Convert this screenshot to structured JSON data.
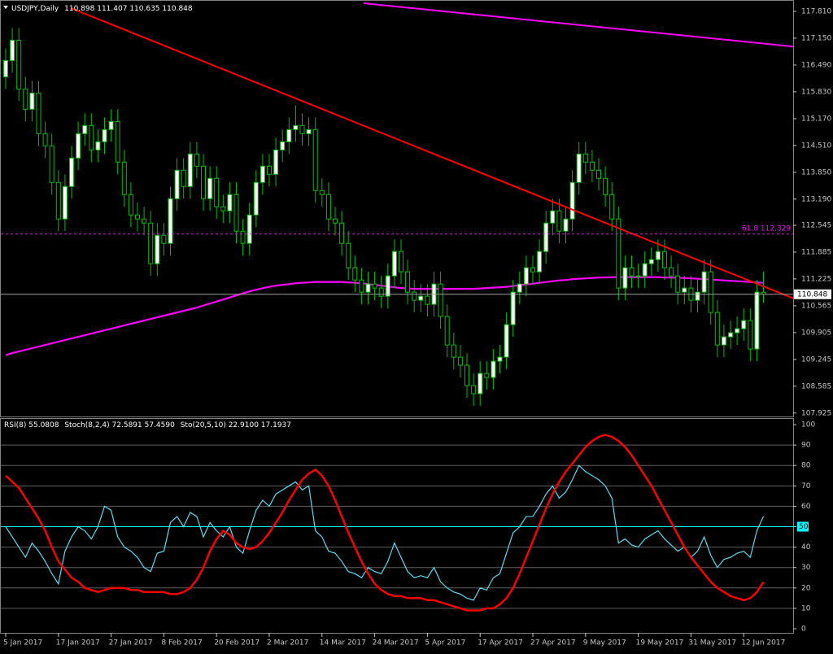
{
  "chart_data": [
    {
      "type": "candlestick",
      "title": "USDJPY,Daily",
      "categories": [
        "5 Jan 2017",
        null,
        null,
        null,
        null,
        null,
        null,
        null,
        "17 Jan 2017",
        null,
        null,
        null,
        null,
        null,
        null,
        null,
        "27 Jan 2017",
        null,
        null,
        null,
        null,
        null,
        null,
        null,
        "8 Feb 2017",
        null,
        null,
        null,
        null,
        null,
        null,
        null,
        "20 Feb 2017",
        null,
        null,
        null,
        null,
        null,
        null,
        null,
        "2 Mar 2017",
        null,
        null,
        null,
        null,
        null,
        null,
        null,
        "14 Mar 2017",
        null,
        null,
        null,
        null,
        null,
        null,
        null,
        "24 Mar 2017",
        null,
        null,
        null,
        null,
        null,
        null,
        null,
        "5 Apr 2017",
        null,
        null,
        null,
        null,
        null,
        null,
        null,
        "17 Apr 2017",
        null,
        null,
        null,
        null,
        null,
        null,
        null,
        "27 Apr 2017",
        null,
        null,
        null,
        null,
        null,
        null,
        null,
        "9 May 2017",
        null,
        null,
        null,
        null,
        null,
        null,
        null,
        "19 May 2017",
        null,
        null,
        null,
        null,
        null,
        null,
        null,
        "31 May 2017",
        null,
        null,
        null,
        null,
        null,
        null,
        null,
        "12 Jun 2017",
        null,
        null,
        null
      ],
      "open": [
        116.2,
        116.6,
        117.1,
        115.9,
        115.4,
        115.8,
        114.8,
        114.5,
        113.6,
        112.7,
        113.5,
        114.2,
        114.8,
        115.0,
        114.4,
        114.6,
        114.9,
        115.1,
        114.1,
        113.3,
        112.8,
        112.7,
        112.6,
        111.6,
        112.3,
        112.1,
        113.2,
        113.9,
        113.5,
        114.3,
        114.0,
        113.2,
        113.7,
        113.0,
        112.9,
        113.3,
        112.4,
        112.1,
        112.8,
        113.6,
        114.0,
        113.8,
        114.4,
        114.6,
        114.9,
        115.0,
        114.8,
        114.9,
        113.4,
        113.3,
        112.7,
        112.6,
        112.1,
        111.5,
        111.2,
        110.9,
        111.1,
        111.0,
        110.8,
        111.3,
        111.9,
        111.4,
        110.9,
        110.7,
        110.8,
        110.6,
        111.1,
        110.3,
        109.6,
        109.3,
        109.1,
        108.6,
        108.4,
        108.9,
        108.8,
        109.2,
        109.3,
        110.1,
        110.9,
        111.1,
        111.5,
        111.4,
        111.9,
        112.6,
        112.9,
        112.4,
        112.7,
        113.6,
        114.3,
        114.1,
        113.9,
        113.7,
        113.3,
        112.7,
        111.0,
        111.5,
        111.3,
        111.3,
        111.6,
        111.7,
        111.9,
        111.5,
        111.3,
        110.9,
        111.0,
        110.7,
        110.9,
        111.4,
        110.4,
        109.6,
        109.8,
        109.9,
        110.0,
        110.2,
        109.5,
        110.898
      ],
      "high": [
        116.9,
        117.4,
        117.4,
        116.2,
        116.1,
        116.1,
        115.1,
        114.8,
        113.9,
        113.8,
        114.5,
        115.1,
        115.3,
        115.3,
        114.9,
        115.2,
        115.4,
        115.4,
        114.4,
        113.6,
        113.1,
        113.0,
        112.9,
        112.6,
        112.6,
        113.5,
        114.2,
        114.2,
        114.6,
        114.6,
        114.3,
        114.0,
        114.0,
        113.3,
        113.6,
        113.6,
        112.7,
        113.1,
        113.9,
        114.3,
        114.3,
        114.7,
        114.9,
        115.2,
        115.5,
        115.3,
        115.2,
        115.2,
        113.7,
        113.6,
        113.0,
        112.9,
        112.4,
        111.8,
        111.5,
        111.4,
        111.4,
        111.3,
        111.6,
        112.2,
        112.2,
        111.7,
        111.2,
        111.1,
        111.1,
        111.4,
        111.4,
        110.6,
        109.9,
        109.6,
        109.4,
        108.9,
        109.2,
        109.2,
        109.5,
        109.6,
        110.4,
        111.2,
        111.4,
        111.8,
        111.8,
        112.2,
        112.9,
        113.2,
        113.2,
        113.0,
        113.9,
        114.6,
        114.6,
        114.4,
        114.2,
        114.0,
        113.6,
        113.0,
        111.8,
        111.8,
        111.6,
        111.9,
        112.0,
        112.2,
        112.2,
        111.8,
        111.6,
        111.3,
        111.3,
        111.2,
        111.7,
        111.7,
        110.7,
        110.1,
        110.2,
        110.3,
        110.5,
        110.5,
        111.2,
        111.407
      ],
      "low": [
        115.9,
        116.3,
        115.6,
        115.1,
        115.1,
        114.5,
        114.2,
        113.3,
        112.4,
        112.4,
        113.2,
        113.9,
        114.5,
        114.1,
        114.1,
        114.3,
        114.6,
        113.8,
        113.0,
        112.5,
        112.4,
        112.3,
        111.3,
        111.3,
        111.8,
        111.8,
        112.9,
        113.2,
        113.2,
        113.7,
        112.9,
        112.9,
        112.7,
        112.6,
        112.6,
        112.1,
        111.8,
        111.8,
        112.5,
        113.3,
        113.5,
        113.5,
        114.1,
        114.3,
        114.6,
        114.5,
        114.5,
        113.1,
        113.0,
        112.4,
        112.3,
        111.8,
        111.2,
        110.9,
        110.6,
        110.6,
        110.7,
        110.5,
        110.5,
        111.0,
        111.1,
        110.6,
        110.4,
        110.4,
        110.3,
        110.3,
        110.0,
        109.3,
        109.0,
        108.8,
        108.3,
        108.1,
        108.1,
        108.5,
        108.5,
        108.9,
        109.0,
        109.8,
        110.6,
        110.8,
        111.1,
        111.1,
        111.6,
        112.3,
        112.1,
        112.1,
        112.4,
        113.3,
        113.8,
        113.6,
        113.4,
        113.0,
        112.4,
        110.7,
        110.7,
        111.0,
        111.0,
        111.0,
        111.3,
        111.4,
        111.2,
        111.0,
        110.6,
        110.6,
        110.4,
        110.4,
        110.6,
        110.1,
        109.3,
        109.3,
        109.5,
        109.6,
        109.7,
        109.2,
        109.2,
        110.635
      ],
      "close": [
        116.6,
        117.1,
        115.9,
        115.4,
        115.8,
        114.8,
        114.5,
        113.6,
        112.7,
        113.5,
        114.2,
        114.8,
        115.0,
        114.4,
        114.6,
        114.9,
        115.1,
        114.1,
        113.3,
        112.8,
        112.7,
        112.6,
        111.6,
        112.3,
        112.1,
        113.2,
        113.9,
        113.5,
        114.3,
        114.0,
        113.2,
        113.7,
        113.0,
        112.9,
        113.3,
        112.4,
        112.1,
        112.8,
        113.6,
        114.0,
        113.8,
        114.4,
        114.6,
        114.9,
        115.0,
        114.8,
        114.9,
        113.4,
        113.3,
        112.7,
        112.6,
        112.1,
        111.5,
        111.2,
        110.9,
        111.1,
        111.0,
        110.8,
        111.3,
        111.9,
        111.4,
        110.9,
        110.7,
        110.8,
        110.6,
        111.1,
        110.3,
        109.6,
        109.3,
        109.1,
        108.6,
        108.4,
        108.9,
        108.8,
        109.2,
        109.3,
        110.1,
        110.9,
        111.1,
        111.5,
        111.4,
        111.9,
        112.6,
        112.9,
        112.4,
        112.7,
        113.6,
        114.3,
        114.1,
        113.9,
        113.7,
        113.3,
        112.7,
        111.0,
        111.5,
        111.3,
        111.3,
        111.6,
        111.7,
        111.9,
        111.5,
        111.3,
        110.9,
        111.0,
        110.7,
        110.9,
        111.4,
        110.4,
        109.6,
        109.8,
        109.9,
        110.0,
        110.2,
        109.5,
        110.9,
        110.848
      ],
      "up_color": "#ffffff",
      "down_color": "#000000",
      "wick_color": "#00c000",
      "series": [
        {
          "color": "#ff00ff",
          "values": [
            109.35,
            109.4,
            109.44,
            109.48,
            109.52,
            109.56,
            109.6,
            109.64,
            109.68,
            109.72,
            109.76,
            109.8,
            109.84,
            109.88,
            109.92,
            109.96,
            110.0,
            110.04,
            110.08,
            110.12,
            110.16,
            110.2,
            110.24,
            110.28,
            110.32,
            110.36,
            110.4,
            110.44,
            110.48,
            110.52,
            110.57,
            110.62,
            110.67,
            110.72,
            110.77,
            110.82,
            110.87,
            110.92,
            110.96,
            111.0,
            111.03,
            111.06,
            111.08,
            111.1,
            111.12,
            111.13,
            111.14,
            111.15,
            111.15,
            111.15,
            111.15,
            111.15,
            111.14,
            111.13,
            111.12,
            111.1,
            111.08,
            111.06,
            111.04,
            111.02,
            111.0,
            110.99,
            110.98,
            110.98,
            110.98,
            110.98,
            110.98,
            110.98,
            110.98,
            110.98,
            110.98,
            110.98,
            110.99,
            111.0,
            111.01,
            111.02,
            111.03,
            111.05,
            111.07,
            111.09,
            111.11,
            111.13,
            111.15,
            111.17,
            111.19,
            111.2,
            111.22,
            111.23,
            111.24,
            111.25,
            111.26,
            111.26,
            111.27,
            111.27,
            111.27,
            111.27,
            111.27,
            111.27,
            111.27,
            111.27,
            111.26,
            111.26,
            111.25,
            111.25,
            111.24,
            111.23,
            111.22,
            111.21,
            111.2,
            111.19,
            111.18,
            111.17,
            111.16,
            111.15,
            111.14,
            111.13
          ]
        }
      ],
      "trendlines": [
        {
          "color": "#ff0000",
          "x": [
            9.9,
            120.4
          ],
          "y": [
            117.89,
            110.69
          ]
        },
        {
          "color": "#ff00ff",
          "x": [
            54.3,
            120.4
          ],
          "y": [
            118.01,
            116.93
          ]
        }
      ],
      "levels": [
        {
          "label": "61.8 112.329",
          "value": 112.329,
          "color": "#ff00ff"
        }
      ],
      "ylim": [
        107.84,
        118.05
      ],
      "yticks": [
        {
          "value": 117.81,
          "label": "117.810"
        },
        {
          "value": 117.15,
          "label": "117.150"
        },
        {
          "value": 116.49,
          "label": "116.490"
        },
        {
          "value": 115.83,
          "label": "115.830"
        },
        {
          "value": 115.17,
          "label": "115.170"
        },
        {
          "value": 114.51,
          "label": "114.510"
        },
        {
          "value": 113.85,
          "label": "113.850"
        },
        {
          "value": 113.19,
          "label": "113.190"
        },
        {
          "value": 112.545,
          "label": "112.545"
        },
        {
          "value": 111.885,
          "label": "111.885"
        },
        {
          "value": 111.225,
          "label": "111.225"
        },
        {
          "value": 110.565,
          "label": "110.565"
        },
        {
          "value": 109.905,
          "label": "109.905"
        },
        {
          "value": 109.245,
          "label": "109.245"
        },
        {
          "value": 108.585,
          "label": "108.585"
        },
        {
          "value": 107.925,
          "label": "107.925"
        }
      ]
    },
    {
      "type": "line",
      "series": [
        {
          "name": "RSI(8)",
          "color": "#5fd8f0",
          "values": [
            50,
            45,
            40,
            35,
            42,
            38,
            33,
            27,
            22,
            38,
            45,
            50,
            48,
            44,
            50,
            60,
            58,
            45,
            40,
            38,
            35,
            30,
            28,
            37,
            38,
            52,
            55,
            50,
            57,
            55,
            45,
            52,
            48,
            45,
            50,
            40,
            37,
            48,
            58,
            63,
            60,
            66,
            68,
            70,
            72,
            68,
            70,
            48,
            45,
            38,
            37,
            33,
            28,
            27,
            25,
            30,
            28,
            27,
            33,
            42,
            35,
            28,
            25,
            26,
            25,
            30,
            23,
            20,
            18,
            17,
            15,
            14,
            20,
            19,
            25,
            27,
            37,
            47,
            50,
            55,
            55,
            60,
            66,
            70,
            64,
            67,
            73,
            80,
            77,
            75,
            73,
            70,
            64,
            42,
            44,
            41,
            40,
            44,
            46,
            48,
            44,
            41,
            38,
            40,
            35,
            38,
            45,
            36,
            30,
            34,
            35,
            37,
            38,
            35,
            48,
            55.0808
          ]
        },
        {
          "name": "Sto(20,5,10)",
          "color": "#ff0000",
          "values": [
            75,
            72,
            69,
            64,
            59,
            54,
            48,
            40,
            33,
            29,
            25,
            23,
            20,
            19,
            18,
            19,
            20,
            20,
            20,
            19,
            19,
            18,
            18,
            18,
            18,
            17,
            17,
            18,
            20,
            24,
            30,
            38,
            44,
            48,
            46,
            42,
            40,
            39,
            40,
            43,
            47,
            52,
            57,
            63,
            68,
            73,
            76,
            78,
            75,
            70,
            63,
            55,
            47,
            40,
            33,
            27,
            22,
            19,
            17,
            16,
            16,
            15,
            15,
            15,
            14,
            14,
            13,
            12,
            11,
            10,
            9,
            9,
            9,
            10,
            10,
            12,
            15,
            20,
            27,
            35,
            43,
            51,
            59,
            66,
            72,
            77,
            81,
            85,
            89,
            92,
            94,
            95,
            94,
            92,
            89,
            85,
            80,
            75,
            70,
            64,
            58,
            52,
            46,
            40,
            35,
            31,
            27,
            23,
            20,
            18,
            16,
            15,
            14,
            15,
            18,
            22.91
          ]
        }
      ],
      "stoch_readout": "Stoch(8,2,4) 72.5891 57.4590",
      "sto_readout": "22.9100 17.1937",
      "levels": [
        {
          "value": 50,
          "color": "#00ffff"
        }
      ],
      "grid": true,
      "ylim": [
        -2,
        102.8
      ],
      "yticks": [
        0,
        10,
        20,
        30,
        40,
        50,
        60,
        70,
        80,
        90,
        100
      ]
    }
  ]
}
